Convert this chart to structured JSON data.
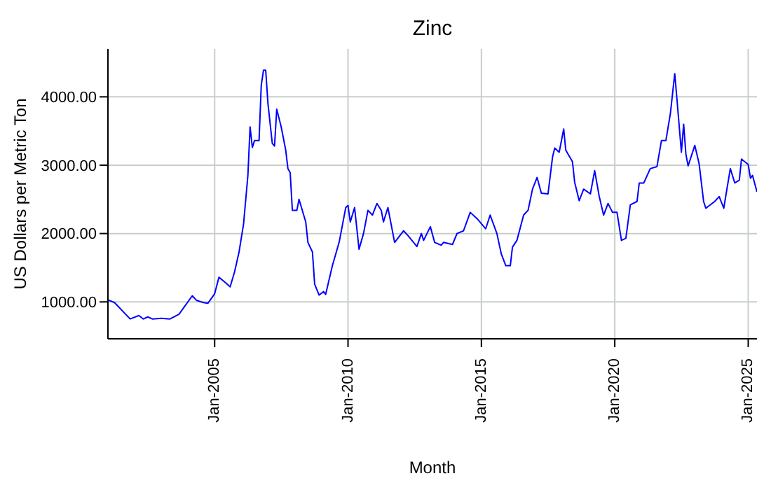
{
  "chart_data": {
    "type": "line",
    "title": "Zinc",
    "xlabel": "Month",
    "ylabel": "US Dollars per Metric Ton",
    "grid": true,
    "xlim": [
      "2001-01",
      "2025-05"
    ],
    "xticks": [
      {
        "value": "2005-01",
        "label": "Jan-2005"
      },
      {
        "value": "2010-01",
        "label": "Jan-2010"
      },
      {
        "value": "2015-01",
        "label": "Jan-2015"
      },
      {
        "value": "2020-01",
        "label": "Jan-2020"
      },
      {
        "value": "2025-01",
        "label": "Jan-2025"
      }
    ],
    "ylim": [
      460,
      4700
    ],
    "yticks": [
      {
        "value": 1000,
        "label": "1000.00"
      },
      {
        "value": 2000,
        "label": "2000.00"
      },
      {
        "value": 3000,
        "label": "3000.00"
      },
      {
        "value": 4000,
        "label": "4000.00"
      }
    ],
    "series": [
      {
        "color": "#0000ff",
        "x": [
          "2001-01",
          "2001-04",
          "2001-11",
          "2002-03",
          "2002-05",
          "2002-07",
          "2002-09",
          "2003-01",
          "2003-05",
          "2003-09",
          "2004-03",
          "2004-05",
          "2004-08",
          "2004-10",
          "2005-01",
          "2005-03",
          "2005-06",
          "2005-08",
          "2005-10",
          "2005-12",
          "2006-02",
          "2006-04",
          "2006-05",
          "2006-06",
          "2006-07",
          "2006-09",
          "2006-10",
          "2006-11",
          "2006-12",
          "2007-01",
          "2007-03",
          "2007-04",
          "2007-05",
          "2007-07",
          "2007-09",
          "2007-10",
          "2007-11",
          "2007-12",
          "2008-02",
          "2008-03",
          "2008-06",
          "2008-07",
          "2008-09",
          "2008-10",
          "2008-12",
          "2009-02",
          "2009-03",
          "2009-05",
          "2009-06",
          "2009-09",
          "2009-12",
          "2010-01",
          "2010-02",
          "2010-04",
          "2010-06",
          "2010-08",
          "2010-10",
          "2010-12",
          "2011-02",
          "2011-04",
          "2011-05",
          "2011-07",
          "2011-10",
          "2012-02",
          "2012-04",
          "2012-08",
          "2012-10",
          "2012-11",
          "2013-02",
          "2013-04",
          "2013-07",
          "2013-08",
          "2013-12",
          "2014-02",
          "2014-05",
          "2014-08",
          "2014-11",
          "2015-03",
          "2015-05",
          "2015-08",
          "2015-10",
          "2015-12",
          "2016-02",
          "2016-03",
          "2016-05",
          "2016-08",
          "2016-10",
          "2016-12",
          "2017-02",
          "2017-04",
          "2017-07",
          "2017-09",
          "2017-10",
          "2017-12",
          "2018-02",
          "2018-03",
          "2018-06",
          "2018-07",
          "2018-09",
          "2018-11",
          "2019-02",
          "2019-04",
          "2019-06",
          "2019-08",
          "2019-10",
          "2019-12",
          "2020-02",
          "2020-04",
          "2020-06",
          "2020-08",
          "2020-11",
          "2020-12",
          "2021-02",
          "2021-05",
          "2021-08",
          "2021-10",
          "2021-12",
          "2022-02",
          "2022-04",
          "2022-05",
          "2022-07",
          "2022-08",
          "2022-09",
          "2022-10",
          "2023-01",
          "2023-03",
          "2023-05",
          "2023-06",
          "2023-10",
          "2023-12",
          "2024-02",
          "2024-05",
          "2024-07",
          "2024-09",
          "2024-10",
          "2025-01",
          "2025-02",
          "2025-03",
          "2025-05"
        ],
        "values": [
          1030,
          990,
          750,
          800,
          750,
          780,
          750,
          760,
          750,
          820,
          1090,
          1020,
          990,
          980,
          1120,
          1360,
          1280,
          1220,
          1440,
          1730,
          2140,
          2850,
          3560,
          3260,
          3360,
          3360,
          4170,
          4390,
          4390,
          3900,
          3320,
          3280,
          3820,
          3560,
          3220,
          2950,
          2890,
          2340,
          2340,
          2500,
          2170,
          1870,
          1730,
          1260,
          1100,
          1150,
          1110,
          1390,
          1530,
          1870,
          2380,
          2410,
          2170,
          2380,
          1770,
          2000,
          2340,
          2270,
          2440,
          2340,
          2170,
          2380,
          1870,
          2040,
          1970,
          1810,
          2000,
          1900,
          2100,
          1870,
          1830,
          1870,
          1840,
          2000,
          2040,
          2310,
          2220,
          2070,
          2270,
          2000,
          1700,
          1530,
          1530,
          1800,
          1900,
          2270,
          2340,
          2650,
          2820,
          2590,
          2580,
          3120,
          3250,
          3190,
          3530,
          3220,
          3050,
          2750,
          2480,
          2650,
          2580,
          2920,
          2550,
          2270,
          2440,
          2310,
          2310,
          1900,
          1930,
          2420,
          2470,
          2740,
          2740,
          2950,
          2980,
          3360,
          3360,
          3760,
          4340,
          3970,
          3190,
          3600,
          3160,
          2990,
          3290,
          3020,
          2470,
          2370,
          2470,
          2540,
          2370,
          2950,
          2740,
          2780,
          3090,
          3010,
          2810,
          2850,
          2610
        ]
      }
    ]
  }
}
